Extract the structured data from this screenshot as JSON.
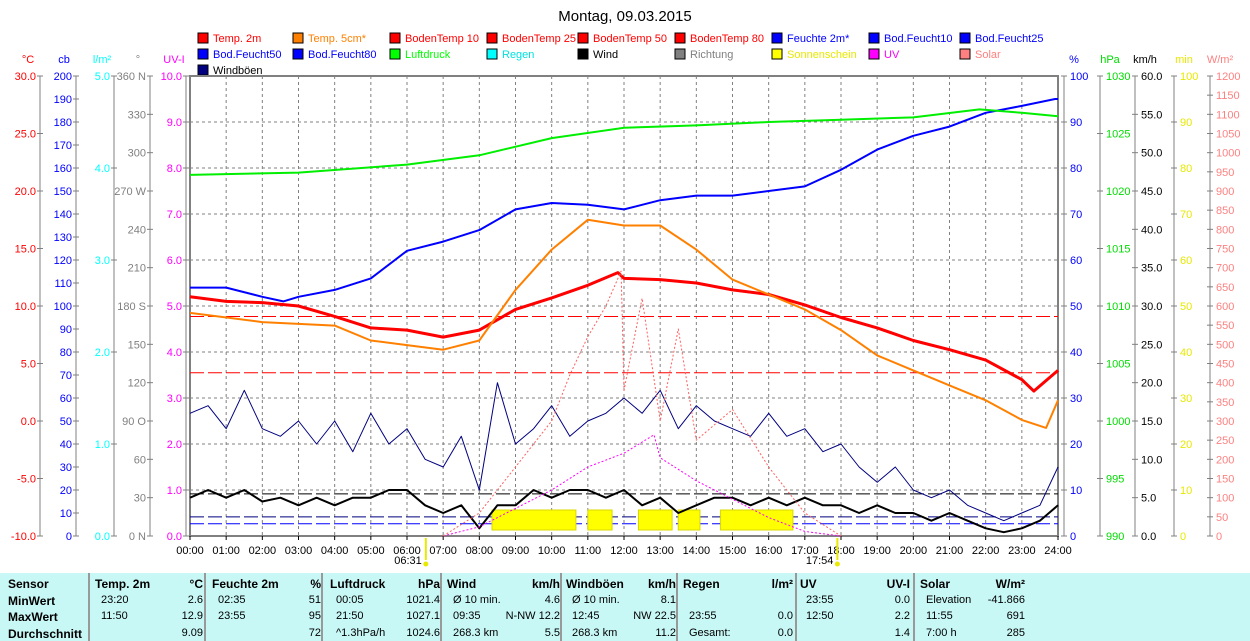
{
  "chart_data": {
    "type": "line",
    "title": "Montag, 09.03.2015",
    "x_ticks": [
      "00:00",
      "01:00",
      "02:00",
      "03:00",
      "04:00",
      "05:00",
      "06:00",
      "07:00",
      "08:00",
      "09:00",
      "10:00",
      "11:00",
      "12:00",
      "13:00",
      "14:00",
      "15:00",
      "16:00",
      "17:00",
      "18:00",
      "19:00",
      "20:00",
      "21:00",
      "22:00",
      "23:00",
      "24:00"
    ],
    "sunrise": {
      "label": "06:31",
      "hour": 6.52
    },
    "sunset": {
      "label": "17:54",
      "hour": 17.9
    },
    "legend": [
      {
        "label": "Temp. 2m",
        "color": "#ff0000"
      },
      {
        "label": "Temp. 5cm*",
        "color": "#ff8000"
      },
      {
        "label": "BodenTemp 10",
        "color": "#ff0000"
      },
      {
        "label": "BodenTemp 25",
        "color": "#ff0000"
      },
      {
        "label": "BodenTemp 50",
        "color": "#ff0000"
      },
      {
        "label": "BodenTemp 80",
        "color": "#ff0000"
      },
      {
        "label": "Feuchte 2m*",
        "color": "#0000ff"
      },
      {
        "label": "Bod.Feucht10",
        "color": "#0000ff"
      },
      {
        "label": "Bod.Feucht25",
        "color": "#0000ff"
      },
      {
        "label": "Bod.Feucht50",
        "color": "#0000ff"
      },
      {
        "label": "Bod.Feucht80",
        "color": "#0000ff"
      },
      {
        "label": "Luftdruck",
        "color": "#00ff00"
      },
      {
        "label": "Regen",
        "color": "#00ffff"
      },
      {
        "label": "Wind",
        "color": "#000000"
      },
      {
        "label": "Richtung",
        "color": "#808080"
      },
      {
        "label": "Sonnenschein",
        "color": "#ffff00"
      },
      {
        "label": "UV",
        "color": "#ff00ff"
      },
      {
        "label": "Solar",
        "color": "#ff8080"
      },
      {
        "label": "Windböen",
        "color": "#000080"
      }
    ],
    "axes_left": [
      {
        "unit": "°C",
        "min": -10,
        "max": 30,
        "step": 5,
        "decimals": 1,
        "color": "#ff0000"
      },
      {
        "unit": "cb",
        "min": 0,
        "max": 200,
        "step": 10,
        "decimals": 0,
        "color": "#0000ff"
      },
      {
        "unit": "l/m²",
        "min": 0,
        "max": 5,
        "step": 1,
        "decimals": 1,
        "color": "#00ffff"
      },
      {
        "unit": "°",
        "min": 0,
        "max": 360,
        "step": 30,
        "decimals": 0,
        "color": "#808080",
        "named": {
          "0": "0 N",
          "90": "90 O",
          "180": "180 S",
          "270": "270 W",
          "360": "360 N"
        }
      },
      {
        "unit": "UV-I",
        "min": 0,
        "max": 10,
        "step": 1,
        "decimals": 1,
        "color": "#ff00ff"
      }
    ],
    "axes_right": [
      {
        "unit": "%",
        "min": 0,
        "max": 100,
        "step": 10,
        "decimals": 0,
        "color": "#0000ff"
      },
      {
        "unit": "hPa",
        "min": 990,
        "max": 1030,
        "step": 5,
        "decimals": 0,
        "color": "#00dd00"
      },
      {
        "unit": "km/h",
        "min": 0,
        "max": 60,
        "step": 5,
        "decimals": 1,
        "color": "#000000"
      },
      {
        "unit": "min",
        "min": 0,
        "max": 100,
        "step": 10,
        "decimals": 0,
        "color": "#ffff00"
      },
      {
        "unit": "W/m²",
        "min": 0,
        "max": 1200,
        "step": 50,
        "decimals": 0,
        "color": "#ff8080"
      }
    ],
    "series": [
      {
        "name": "Temp. 2m",
        "axis": "°C",
        "color": "#ff0000",
        "width": 3,
        "x": [
          0,
          1,
          2,
          3,
          4,
          5,
          6,
          7,
          8,
          9,
          10,
          11,
          11.83,
          12,
          13,
          14,
          15,
          16,
          17,
          18,
          19,
          20,
          21,
          22,
          23,
          23.33,
          24
        ],
        "y": [
          10.8,
          10.4,
          10.3,
          10.0,
          9.1,
          8.1,
          7.9,
          7.3,
          7.9,
          9.7,
          10.7,
          11.8,
          12.9,
          12.4,
          12.3,
          12.0,
          11.4,
          11.0,
          10.1,
          9.0,
          8.1,
          7.0,
          6.2,
          5.3,
          3.6,
          2.6,
          4.4
        ]
      },
      {
        "name": "Temp. 5cm*",
        "axis": "°C",
        "color": "#ff8000",
        "width": 2,
        "x": [
          0,
          2,
          4,
          5,
          6,
          7,
          8,
          9,
          10,
          11,
          12,
          13,
          14,
          15,
          16,
          17,
          18,
          19,
          20,
          21,
          22,
          23,
          23.67,
          24
        ],
        "y": [
          9.4,
          8.6,
          8.3,
          7.0,
          6.6,
          6.2,
          7.0,
          11.4,
          14.9,
          17.5,
          17.0,
          17.0,
          14.9,
          12.3,
          11.0,
          9.7,
          7.9,
          5.7,
          4.4,
          3.1,
          1.8,
          0.1,
          -0.6,
          1.8
        ]
      },
      {
        "name": "Feuchte 2m*",
        "axis": "%",
        "color": "#0000ff",
        "width": 2,
        "x": [
          0,
          1,
          2,
          2.58,
          3,
          4,
          5,
          6,
          7,
          8,
          9,
          10,
          11,
          12,
          13,
          14,
          15,
          16,
          17,
          18,
          19,
          20,
          21,
          22,
          23,
          23.92,
          24
        ],
        "y": [
          54,
          54,
          52,
          51,
          52,
          53.5,
          56,
          62,
          64,
          66.5,
          71,
          72.4,
          72,
          71,
          73,
          74,
          74,
          75,
          76,
          79.6,
          84,
          87,
          89,
          92,
          93.5,
          95,
          95
        ]
      },
      {
        "name": "Luftdruck",
        "axis": "hPa",
        "color": "#00ee00",
        "width": 2,
        "x": [
          0,
          3,
          6,
          8,
          10,
          12,
          14,
          16,
          18,
          20,
          21.83,
          23,
          24
        ],
        "y": [
          1021.4,
          1021.6,
          1022.3,
          1023.1,
          1024.6,
          1025.5,
          1025.7,
          1026.0,
          1026.2,
          1026.4,
          1027.1,
          1026.8,
          1026.5
        ]
      },
      {
        "name": "Windböen",
        "axis": "km/h",
        "color": "#000080",
        "width": 1,
        "x": [
          0,
          0.5,
          1,
          1.5,
          2,
          2.5,
          3,
          3.5,
          4,
          4.5,
          5,
          5.5,
          6,
          6.5,
          7,
          7.5,
          8,
          8.5,
          9,
          9.5,
          10,
          10.5,
          11,
          11.5,
          12,
          12.5,
          13,
          13.5,
          14,
          14.5,
          15,
          15.5,
          16,
          16.5,
          17,
          17.5,
          18,
          18.5,
          19,
          19.5,
          20,
          20.5,
          21,
          21.5,
          22,
          22.5,
          23,
          23.5,
          24
        ],
        "y": [
          16,
          17,
          14,
          19,
          14,
          13,
          15,
          12,
          15,
          11,
          16,
          12,
          14,
          10,
          9,
          13,
          6,
          20,
          12,
          14,
          17,
          13,
          15,
          16,
          18,
          16,
          19,
          14,
          17,
          15,
          14,
          13,
          16,
          13,
          14,
          11,
          12,
          9,
          7,
          9,
          6,
          5,
          6,
          4,
          3,
          2,
          3,
          4,
          9
        ]
      },
      {
        "name": "Wind",
        "axis": "km/h",
        "color": "#000000",
        "width": 2,
        "x": [
          0,
          0.5,
          1,
          1.5,
          2,
          2.5,
          3,
          3.5,
          4,
          4.5,
          5,
          5.5,
          6,
          6.5,
          7,
          7.5,
          8,
          8.5,
          9,
          9.5,
          10,
          10.5,
          11,
          11.5,
          12,
          12.5,
          13,
          13.5,
          14,
          14.5,
          15,
          15.5,
          16,
          16.5,
          17,
          17.5,
          18,
          18.5,
          19,
          19.5,
          20,
          20.5,
          21,
          21.5,
          22,
          22.5,
          23,
          23.5,
          24
        ],
        "y": [
          5,
          6,
          5,
          6,
          4.5,
          5,
          4,
          5,
          4,
          5,
          5,
          6,
          6,
          4,
          3,
          4,
          1,
          4,
          4,
          6,
          5,
          6,
          6,
          5,
          6,
          4,
          5,
          3,
          4,
          5,
          5,
          4,
          5,
          4,
          5,
          4,
          4,
          3,
          4,
          3,
          3,
          2,
          3,
          2,
          1,
          0.5,
          1,
          2,
          4
        ]
      },
      {
        "name": "UV",
        "axis": "UV-I",
        "color": "#ff00ff",
        "width": 1,
        "dotted": true,
        "x": [
          7,
          8,
          9,
          10,
          11,
          12,
          12.83,
          13,
          14,
          15,
          16,
          17,
          18
        ],
        "y": [
          0,
          0.2,
          0.6,
          1.0,
          1.5,
          1.8,
          2.2,
          1.7,
          1.2,
          0.8,
          0.4,
          0.1,
          0
        ]
      },
      {
        "name": "Solar",
        "axis": "W/m²",
        "color": "#ff6060",
        "width": 1,
        "dotted": true,
        "x": [
          7,
          8,
          9,
          10,
          10.5,
          11,
          11.5,
          11.92,
          12,
          12.5,
          13,
          13.5,
          14,
          15,
          16,
          17,
          18
        ],
        "y": [
          0,
          60,
          180,
          300,
          420,
          520,
          600,
          691,
          380,
          620,
          300,
          540,
          250,
          330,
          180,
          60,
          0
        ]
      }
    ],
    "sunshine_periods": [
      [
        8.35,
        10.67
      ],
      [
        11.0,
        11.67
      ],
      [
        12.4,
        13.33
      ],
      [
        13.5,
        14.1
      ],
      [
        14.67,
        16.67
      ]
    ],
    "reference_lines": [
      {
        "axis": "°C",
        "value": 9.09,
        "color": "#ff0000"
      },
      {
        "axis": "°C",
        "value": 4.2,
        "color": "#ff0000"
      },
      {
        "axis": "km/h",
        "value": 5.5,
        "color": "#000000"
      },
      {
        "axis": "km/h",
        "value": 2.5,
        "color": "#000080"
      },
      {
        "axis": "km/h",
        "value": 1.6,
        "color": "#0000ff"
      }
    ]
  },
  "stats": {
    "headers": [
      "Sensor",
      "Temp. 2m",
      "°C",
      "Feuchte 2m",
      "%",
      "Luftdruck",
      "hPa",
      "Wind",
      "km/h",
      "Windböen",
      "km/h",
      "Regen",
      "l/m²",
      "UV",
      "UV-I",
      "Solar",
      "W/m²"
    ],
    "rows": [
      [
        "MinWert",
        "23:20",
        "2.6",
        "02:35",
        "51",
        "00:05",
        "1021.4",
        "Ø 10 min.",
        "4.6",
        "Ø 10 min.",
        "8.1",
        "",
        "",
        "23:55",
        "0.0",
        "Elevation",
        "-41.866"
      ],
      [
        "MaxWert",
        "11:50",
        "12.9",
        "23:55",
        "95",
        "21:50",
        "1027.1",
        "09:35",
        "N-NW 12.2",
        "12:45",
        "NW 22.5",
        "23:55",
        "0.0",
        "12:50",
        "2.2",
        "11:55",
        "691"
      ],
      [
        "Durchschnitt",
        "",
        "9.09",
        "",
        "72",
        "^1.3hPa/h",
        "1024.6",
        "268.3 km",
        "5.5",
        "268.3 km",
        "11.2",
        "Gesamt:",
        "0.0",
        "",
        "1.4",
        "7:00 h",
        "285"
      ]
    ]
  }
}
